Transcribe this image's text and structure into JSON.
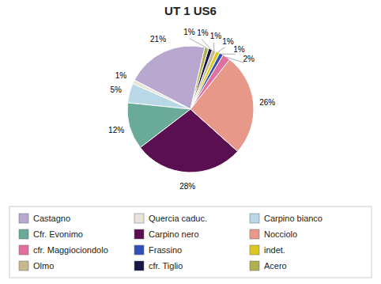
{
  "chart_data": {
    "type": "pie",
    "title": "UT 1 US6",
    "categories": [
      "Castagno",
      "Quercia caduc.",
      "Carpino bianco",
      "Cfr. Evonimo",
      "Carpino nero",
      "Nocciolo",
      "cfr. Maggiociondolo",
      "Frassino",
      "indet.",
      "Olmo",
      "cfr. Tiglio",
      "Acero"
    ],
    "values": [
      21,
      1,
      5,
      12,
      28,
      26,
      2,
      1,
      1,
      1,
      1,
      1
    ],
    "value_labels": [
      "21%",
      "1%",
      "5%",
      "12%",
      "28%",
      "26%",
      "2%",
      "1%",
      "1%",
      "1%",
      "1%",
      "1%"
    ],
    "colors": [
      "#b8a8d0",
      "#e8e4d8",
      "#b8d8e8",
      "#6aaa98",
      "#5a1050",
      "#e89888",
      "#e070a0",
      "#3050b8",
      "#d8c820",
      "#c8b890",
      "#181848",
      "#b0b050"
    ],
    "data_labels": true,
    "legend": "bottom"
  }
}
